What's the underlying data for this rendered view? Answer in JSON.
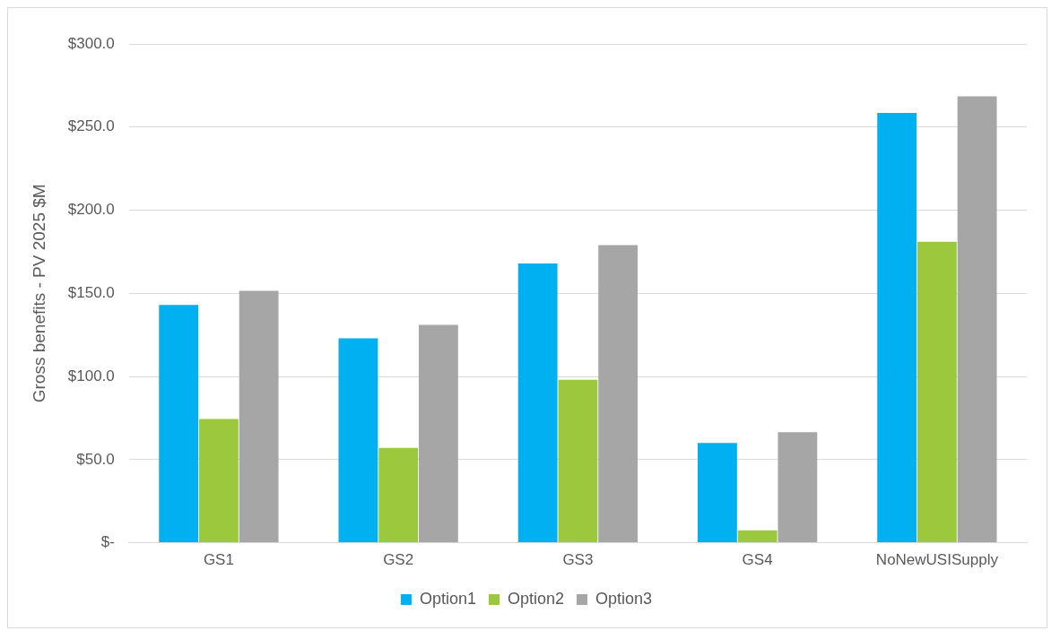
{
  "chart_data": {
    "type": "bar",
    "ylabel": "Gross benefits - PV 2025 $M",
    "categories": [
      "GS1",
      "GS2",
      "GS3",
      "GS4",
      "NoNewUSISupply"
    ],
    "series": [
      {
        "name": "Option1",
        "color": "#00b0f0",
        "values": [
          143,
          123,
          168,
          60,
          258.5
        ]
      },
      {
        "name": "Option2",
        "color": "#9bc83c",
        "values": [
          74.5,
          57,
          98,
          7.5,
          181
        ]
      },
      {
        "name": "Option3",
        "color": "#a6a6a6",
        "values": [
          151.5,
          131,
          179,
          66.5,
          268.5
        ]
      }
    ],
    "ylim": [
      0,
      300
    ],
    "yticks": [
      {
        "value": 0,
        "label": "$-"
      },
      {
        "value": 50,
        "label": "$50.0"
      },
      {
        "value": 100,
        "label": "$100.0"
      },
      {
        "value": 150,
        "label": "$150.0"
      },
      {
        "value": 200,
        "label": "$200.0"
      },
      {
        "value": 250,
        "label": "$250.0"
      },
      {
        "value": 300,
        "label": "$300.0"
      }
    ],
    "grid": "y",
    "legend": "bottom"
  }
}
